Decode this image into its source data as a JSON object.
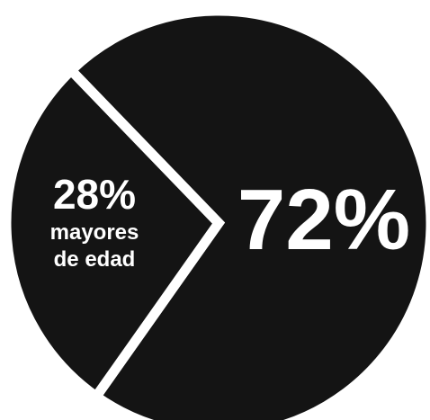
{
  "chart_data": {
    "type": "pie",
    "categories": [
      null,
      "mayores de edad"
    ],
    "values": [
      72,
      28
    ],
    "value_labels": [
      "72%",
      "28%"
    ],
    "colors": [
      "#141414",
      "#141414"
    ]
  }
}
